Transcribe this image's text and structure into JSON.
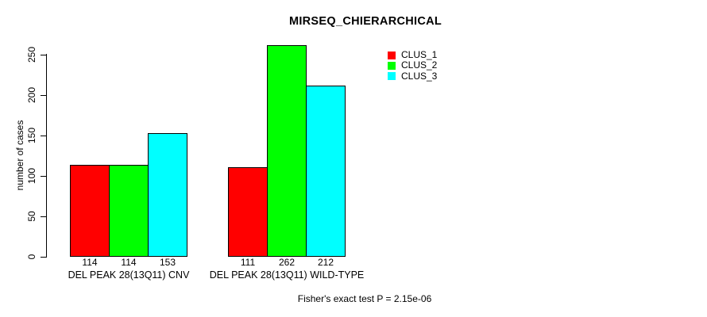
{
  "chart_data": {
    "type": "bar",
    "title": "MIRSEQ_CHIERARCHICAL",
    "categories": [
      "DEL PEAK 28(13Q11) CNV",
      "DEL PEAK 28(13Q11) WILD-TYPE"
    ],
    "series": [
      {
        "name": "CLUS_1",
        "color": "#ff0000",
        "values": [
          114,
          111
        ]
      },
      {
        "name": "CLUS_2",
        "color": "#00ff00",
        "values": [
          114,
          262
        ]
      },
      {
        "name": "CLUS_3",
        "color": "#00ffff",
        "values": [
          153,
          212
        ]
      }
    ],
    "bar_value_labels": [
      [
        "114",
        "114",
        "153"
      ],
      [
        "111",
        "262",
        "212"
      ]
    ],
    "xlabel": "",
    "ylabel": "number of cases",
    "ylim": [
      0,
      250
    ],
    "yticks": [
      "0",
      "50",
      "100",
      "150",
      "200",
      "250"
    ],
    "grid": false,
    "legend_position": "top-right",
    "bar_border_color": "#000000"
  },
  "legend": {
    "entries": [
      {
        "label": "CLUS_1",
        "color": "#ff0000"
      },
      {
        "label": "CLUS_2",
        "color": "#00ff00"
      },
      {
        "label": "CLUS_3",
        "color": "#00ffff"
      }
    ]
  },
  "footer": {
    "note": "Fisher's exact test P = 2.15e-06"
  }
}
